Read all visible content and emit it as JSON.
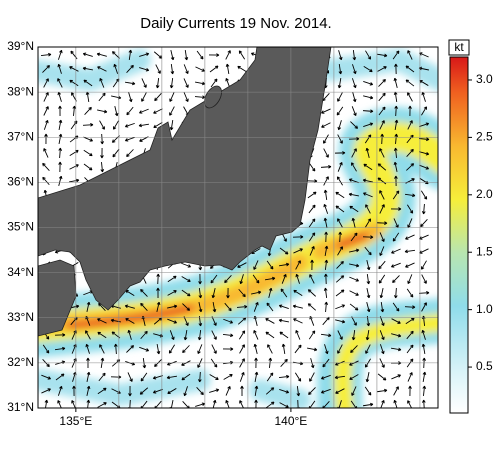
{
  "title": "Daily Currents 19 Nov. 2014.",
  "map": {
    "xlim": [
      134.12,
      143.42
    ],
    "ylim": [
      31,
      39
    ],
    "xticks": [
      {
        "value": 135,
        "label": "135°E"
      },
      {
        "value": 140,
        "label": "140°E"
      }
    ],
    "yticks": [
      {
        "value": 31,
        "label": "31°N"
      },
      {
        "value": 32,
        "label": "32°N"
      },
      {
        "value": 33,
        "label": "33°N"
      },
      {
        "value": 34,
        "label": "34°N"
      },
      {
        "value": 35,
        "label": "35°N"
      },
      {
        "value": 36,
        "label": "36°N"
      },
      {
        "value": 37,
        "label": "37°N"
      },
      {
        "value": 38,
        "label": "38°N"
      },
      {
        "value": 39,
        "label": "39°N"
      }
    ],
    "xgrid": [
      135,
      136,
      137,
      138,
      139,
      140,
      141,
      142,
      143
    ]
  },
  "colorbar": {
    "unit": "kt",
    "clim": [
      0.1,
      3.2
    ],
    "ticks": [
      0.5,
      {
        "value": 1,
        "label": "1.0"
      },
      1.5,
      {
        "value": 2,
        "label": "2.0"
      },
      2.5,
      {
        "value": 3,
        "label": "3.0"
      }
    ]
  }
}
